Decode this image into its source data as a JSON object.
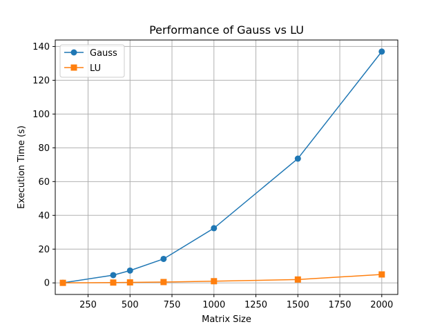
{
  "chart_data": {
    "type": "line",
    "title": "Performance of Gauss vs LU",
    "xlabel": "Matrix Size",
    "ylabel": "Execution Time (s)",
    "xlim": [
      54.5,
      2095.5
    ],
    "ylim": [
      -6.85,
      143.85
    ],
    "xticks": [
      250,
      500,
      750,
      1000,
      1250,
      1500,
      1750,
      2000
    ],
    "yticks": [
      0,
      20,
      40,
      60,
      80,
      100,
      120,
      140
    ],
    "grid": true,
    "legend_position": "top-left",
    "series": [
      {
        "name": "Gauss",
        "color": "#1f77b4",
        "marker": "circle",
        "x": [
          100,
          400,
          500,
          700,
          1000,
          1500,
          2000
        ],
        "y": [
          0.05,
          4.6,
          7.3,
          14.2,
          32.4,
          73.6,
          137.0
        ]
      },
      {
        "name": "LU",
        "color": "#ff7f0e",
        "marker": "square",
        "x": [
          100,
          400,
          500,
          700,
          1000,
          1500,
          2000
        ],
        "y": [
          0.02,
          0.2,
          0.3,
          0.5,
          1.0,
          2.0,
          5.0
        ]
      }
    ]
  }
}
